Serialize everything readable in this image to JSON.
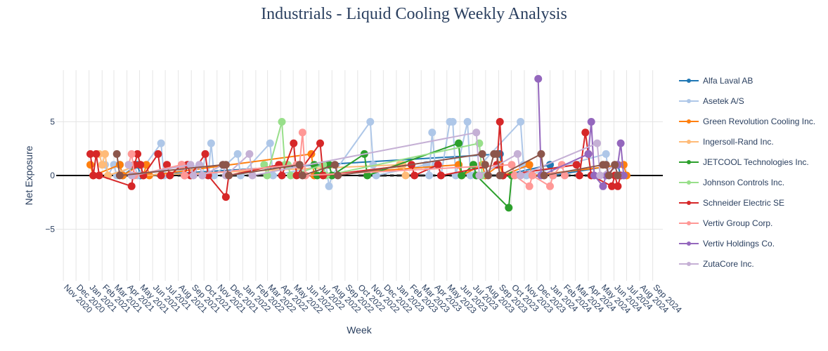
{
  "chart_data": {
    "type": "line",
    "title": "Industrials - Liquid Cooling Weekly Analysis",
    "xlabel": "Week",
    "ylabel": "Net Exposure",
    "x_range": [
      "2020-10-15",
      "2024-09-25"
    ],
    "ylim": [
      -9.8,
      9.8
    ],
    "y_ticks": [
      -5,
      0,
      5
    ],
    "y_tick_labels": [
      "−5",
      "0",
      "5"
    ],
    "x_ticks": [
      "2020-11-01",
      "2020-12-01",
      "2021-01-01",
      "2021-02-01",
      "2021-03-01",
      "2021-04-01",
      "2021-05-01",
      "2021-06-01",
      "2021-07-01",
      "2021-08-01",
      "2021-09-01",
      "2021-10-01",
      "2021-11-01",
      "2021-12-01",
      "2022-01-01",
      "2022-02-01",
      "2022-03-01",
      "2022-04-01",
      "2022-05-01",
      "2022-06-01",
      "2022-07-01",
      "2022-08-01",
      "2022-09-01",
      "2022-10-01",
      "2022-11-01",
      "2022-12-01",
      "2023-01-01",
      "2023-02-01",
      "2023-03-01",
      "2023-04-01",
      "2023-05-01",
      "2023-06-01",
      "2023-07-01",
      "2023-08-01",
      "2023-09-01",
      "2023-10-01",
      "2023-11-01",
      "2023-12-01",
      "2024-01-01",
      "2024-02-01",
      "2024-03-01",
      "2024-04-01",
      "2024-05-01",
      "2024-06-01",
      "2024-07-01",
      "2024-08-01",
      "2024-09-01"
    ],
    "x_tick_labels": [
      "Nov 2020",
      "Dec 2020",
      "Jan 2021",
      "Feb 2021",
      "Mar 2021",
      "Apr 2021",
      "May 2021",
      "Jun 2021",
      "Jul 2021",
      "Aug 2021",
      "Sep 2021",
      "Oct 2021",
      "Nov 2021",
      "Dec 2021",
      "Jan 2022",
      "Feb 2022",
      "Mar 2022",
      "Apr 2022",
      "May 2022",
      "Jun 2022",
      "Jul 2022",
      "Aug 2022",
      "Sep 2022",
      "Oct 2022",
      "Nov 2022",
      "Dec 2022",
      "Jan 2023",
      "Feb 2023",
      "Mar 2023",
      "Apr 2023",
      "May 2023",
      "Jun 2023",
      "Jul 2023",
      "Aug 2023",
      "Sep 2023",
      "Oct 2023",
      "Nov 2023",
      "Dec 2023",
      "Jan 2024",
      "Feb 2024",
      "Mar 2024",
      "Apr 2024",
      "May 2024",
      "Jun 2024",
      "Jul 2024",
      "Aug 2024",
      "Sep 2024"
    ],
    "zero_line": true,
    "grid": true,
    "legend_position": "right",
    "series": [
      {
        "name": "Alfa Laval AB",
        "color": "#1f77b4",
        "points": [
          [
            "2021-03-15",
            1
          ],
          [
            "2021-03-22",
            0
          ],
          [
            "2021-04-26",
            1
          ],
          [
            "2021-05-03",
            0
          ],
          [
            "2023-09-04",
            2
          ],
          [
            "2023-09-11",
            0
          ],
          [
            "2024-01-01",
            1
          ],
          [
            "2024-01-08",
            0
          ],
          [
            "2024-06-10",
            1
          ],
          [
            "2024-06-17",
            0
          ]
        ]
      },
      {
        "name": "Asetek A/S",
        "color": "#aec7e8",
        "points": [
          [
            "2021-02-08",
            1
          ],
          [
            "2021-02-15",
            0
          ],
          [
            "2021-03-01",
            1
          ],
          [
            "2021-03-08",
            0
          ],
          [
            "2021-04-19",
            1
          ],
          [
            "2021-04-26",
            0
          ],
          [
            "2021-06-21",
            3
          ],
          [
            "2021-06-28",
            0
          ],
          [
            "2021-09-20",
            1
          ],
          [
            "2021-09-27",
            0
          ],
          [
            "2021-10-04",
            2
          ],
          [
            "2021-10-11",
            0
          ],
          [
            "2021-10-18",
            3
          ],
          [
            "2021-10-25",
            0
          ],
          [
            "2021-12-20",
            2
          ],
          [
            "2021-12-27",
            0
          ],
          [
            "2022-03-07",
            3
          ],
          [
            "2022-03-14",
            0
          ],
          [
            "2022-07-18",
            1
          ],
          [
            "2022-07-25",
            -1
          ],
          [
            "2022-08-01",
            0
          ],
          [
            "2022-10-31",
            5
          ],
          [
            "2022-11-07",
            1
          ],
          [
            "2022-11-14",
            0
          ],
          [
            "2023-03-13",
            1
          ],
          [
            "2023-03-20",
            0
          ],
          [
            "2023-03-27",
            4
          ],
          [
            "2023-04-03",
            1
          ],
          [
            "2023-04-10",
            1
          ],
          [
            "2023-04-17",
            0
          ],
          [
            "2023-05-08",
            5
          ],
          [
            "2023-05-15",
            5
          ],
          [
            "2023-05-22",
            0
          ],
          [
            "2023-06-19",
            5
          ],
          [
            "2023-06-26",
            0
          ],
          [
            "2023-10-23",
            5
          ],
          [
            "2023-10-30",
            1
          ],
          [
            "2023-11-06",
            0
          ],
          [
            "2024-05-13",
            2
          ],
          [
            "2024-05-20",
            0
          ]
        ]
      },
      {
        "name": "Green Revolution Cooling Inc.",
        "color": "#ff7f0e",
        "points": [
          [
            "2021-01-04",
            1
          ],
          [
            "2021-01-11",
            0
          ],
          [
            "2021-03-15",
            1
          ],
          [
            "2021-03-22",
            0
          ],
          [
            "2021-05-03",
            1
          ],
          [
            "2021-05-10",
            0
          ],
          [
            "2021-05-17",
            1
          ],
          [
            "2021-05-24",
            0
          ],
          [
            "2022-06-13",
            2
          ],
          [
            "2022-06-20",
            0
          ],
          [
            "2023-05-29",
            1
          ],
          [
            "2023-06-05",
            0
          ],
          [
            "2023-07-24",
            1
          ],
          [
            "2023-07-31",
            0
          ],
          [
            "2023-09-04",
            1
          ],
          [
            "2023-09-11",
            0
          ],
          [
            "2023-11-13",
            1
          ],
          [
            "2023-11-20",
            0
          ],
          [
            "2024-06-24",
            1
          ],
          [
            "2024-07-01",
            0
          ]
        ]
      },
      {
        "name": "Ingersoll-Rand Inc.",
        "color": "#ffbb78",
        "points": [
          [
            "2021-01-25",
            2
          ],
          [
            "2021-02-01",
            1
          ],
          [
            "2021-02-08",
            2
          ],
          [
            "2021-02-15",
            0
          ],
          [
            "2021-05-03",
            1
          ],
          [
            "2021-05-10",
            0
          ],
          [
            "2023-01-09",
            1
          ],
          [
            "2023-01-16",
            1
          ],
          [
            "2023-01-23",
            0
          ]
        ]
      },
      {
        "name": "JETCOOL Technologies Inc.",
        "color": "#2ca02c",
        "points": [
          [
            "2022-06-20",
            1
          ],
          [
            "2022-06-27",
            0
          ],
          [
            "2022-07-25",
            1
          ],
          [
            "2022-08-01",
            0
          ],
          [
            "2022-10-17",
            2
          ],
          [
            "2022-10-24",
            0
          ],
          [
            "2023-05-29",
            3
          ],
          [
            "2023-06-05",
            0
          ],
          [
            "2023-07-03",
            1
          ],
          [
            "2023-07-10",
            0
          ],
          [
            "2023-09-25",
            -3
          ],
          [
            "2023-10-02",
            0
          ]
        ]
      },
      {
        "name": "Johnson Controls Inc.",
        "color": "#98df8a",
        "points": [
          [
            "2022-02-21",
            1
          ],
          [
            "2022-02-28",
            0
          ],
          [
            "2022-04-04",
            5
          ],
          [
            "2022-04-11",
            1
          ],
          [
            "2022-04-18",
            1
          ],
          [
            "2022-04-25",
            0
          ],
          [
            "2022-07-11",
            1
          ],
          [
            "2022-07-18",
            0
          ],
          [
            "2023-07-17",
            3
          ],
          [
            "2023-07-24",
            0
          ]
        ]
      },
      {
        "name": "Schneider Electric SE",
        "color": "#d62728",
        "points": [
          [
            "2021-01-04",
            2
          ],
          [
            "2021-01-11",
            0
          ],
          [
            "2021-01-18",
            2
          ],
          [
            "2021-01-25",
            0
          ],
          [
            "2021-04-12",
            -1
          ],
          [
            "2021-04-19",
            1
          ],
          [
            "2021-04-26",
            2
          ],
          [
            "2021-05-03",
            1
          ],
          [
            "2021-05-10",
            0
          ],
          [
            "2021-06-14",
            2
          ],
          [
            "2021-06-21",
            0
          ],
          [
            "2021-07-05",
            1
          ],
          [
            "2021-07-12",
            0
          ],
          [
            "2021-08-09",
            1
          ],
          [
            "2021-08-16",
            0
          ],
          [
            "2021-08-23",
            1
          ],
          [
            "2021-08-30",
            0
          ],
          [
            "2021-10-04",
            2
          ],
          [
            "2021-10-11",
            0
          ],
          [
            "2021-11-22",
            -2
          ],
          [
            "2021-11-29",
            0
          ],
          [
            "2022-03-28",
            1
          ],
          [
            "2022-04-04",
            0
          ],
          [
            "2022-05-02",
            3
          ],
          [
            "2022-05-09",
            0
          ],
          [
            "2022-07-04",
            3
          ],
          [
            "2022-07-11",
            0
          ],
          [
            "2023-02-06",
            1
          ],
          [
            "2023-02-13",
            0
          ],
          [
            "2023-04-10",
            1
          ],
          [
            "2023-04-17",
            0
          ],
          [
            "2023-08-28",
            1
          ],
          [
            "2023-09-04",
            5
          ],
          [
            "2023-09-11",
            0
          ],
          [
            "2024-03-04",
            1
          ],
          [
            "2024-03-11",
            0
          ],
          [
            "2024-03-25",
            4
          ],
          [
            "2024-04-01",
            2
          ],
          [
            "2024-04-08",
            0
          ],
          [
            "2024-05-27",
            -1
          ],
          [
            "2024-06-03",
            0
          ],
          [
            "2024-06-10",
            -1
          ],
          [
            "2024-06-17",
            0
          ]
        ]
      },
      {
        "name": "Vertiv Group Corp.",
        "color": "#ff9896",
        "points": [
          [
            "2021-04-05",
            1
          ],
          [
            "2021-04-12",
            2
          ],
          [
            "2021-04-19",
            0
          ],
          [
            "2021-08-09",
            1
          ],
          [
            "2021-08-16",
            0
          ],
          [
            "2022-05-09",
            1
          ],
          [
            "2022-05-16",
            1
          ],
          [
            "2022-05-23",
            4
          ],
          [
            "2022-05-30",
            0
          ],
          [
            "2023-10-02",
            1
          ],
          [
            "2023-10-09",
            0
          ],
          [
            "2023-11-13",
            -1
          ],
          [
            "2023-11-20",
            0
          ],
          [
            "2024-01-01",
            -1
          ],
          [
            "2024-01-08",
            0
          ],
          [
            "2024-01-29",
            1
          ],
          [
            "2024-02-05",
            0
          ]
        ]
      },
      {
        "name": "Vertiv Holdings Co.",
        "color": "#9467bd",
        "points": [
          [
            "2023-12-04",
            9
          ],
          [
            "2023-12-11",
            0
          ],
          [
            "2024-04-01",
            2
          ],
          [
            "2024-04-08",
            5
          ],
          [
            "2024-04-15",
            0
          ],
          [
            "2024-05-06",
            -1
          ],
          [
            "2024-05-13",
            0
          ],
          [
            "2024-06-10",
            1
          ],
          [
            "2024-06-17",
            3
          ],
          [
            "2024-06-24",
            0
          ]
        ]
      },
      {
        "name": "ZutaCore Inc.",
        "color": "#c5b0d5",
        "points": [
          [
            "2021-04-05",
            1
          ],
          [
            "2021-04-12",
            0
          ],
          [
            "2021-08-30",
            1
          ],
          [
            "2021-09-06",
            0
          ],
          [
            "2021-09-20",
            1
          ],
          [
            "2021-09-27",
            0
          ],
          [
            "2021-11-15",
            1
          ],
          [
            "2021-11-22",
            0
          ],
          [
            "2022-01-17",
            2
          ],
          [
            "2022-01-24",
            0
          ],
          [
            "2023-07-10",
            4
          ],
          [
            "2023-07-17",
            0
          ],
          [
            "2023-10-16",
            2
          ],
          [
            "2023-10-23",
            0
          ],
          [
            "2024-04-22",
            3
          ],
          [
            "2024-04-29",
            0
          ],
          [
            "2024-06-03",
            1
          ],
          [
            "2024-06-10",
            0
          ]
        ]
      },
      {
        "name": "",
        "color": "#8c564b",
        "points": [
          [
            "2021-03-08",
            2
          ],
          [
            "2021-03-15",
            0
          ],
          [
            "2022-05-16",
            1
          ],
          [
            "2022-05-23",
            0
          ],
          [
            "2022-08-08",
            1
          ],
          [
            "2022-08-15",
            0
          ],
          [
            "2021-11-15",
            1
          ],
          [
            "2021-11-22",
            1
          ],
          [
            "2021-11-29",
            0
          ],
          [
            "2023-07-24",
            2
          ],
          [
            "2023-07-31",
            1
          ],
          [
            "2023-08-07",
            0
          ],
          [
            "2023-08-21",
            2
          ],
          [
            "2023-08-28",
            2
          ],
          [
            "2023-09-04",
            0
          ],
          [
            "2023-12-11",
            2
          ],
          [
            "2023-12-18",
            0
          ],
          [
            "2024-05-06",
            1
          ],
          [
            "2024-05-13",
            1
          ],
          [
            "2024-05-20",
            0
          ],
          [
            "2024-06-03",
            1
          ],
          [
            "2024-06-10",
            0
          ]
        ]
      }
    ],
    "baseline_segments": [
      [
        "2021-01-11",
        "2021-12-27"
      ],
      [
        "2022-01-10",
        "2022-08-22"
      ],
      [
        "2022-10-03",
        "2022-12-26"
      ],
      [
        "2023-01-02",
        "2023-12-25"
      ],
      [
        "2024-01-08",
        "2024-07-01"
      ]
    ]
  }
}
